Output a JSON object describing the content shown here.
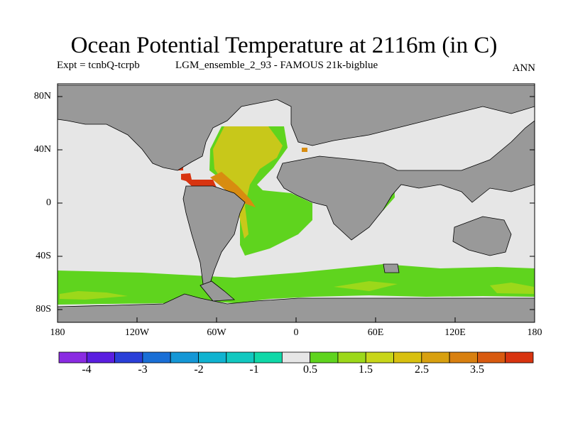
{
  "title": "Ocean Potential Temperature at 2116m (in C)",
  "subtitle_left": "Expt = tcnbQ-tcrpb",
  "subtitle_mid": "LGM_ensemble_2_93 - FAMOUS 21k-bigblue",
  "subtitle_right": "ANN",
  "y_ticks": [
    "80N",
    "40N",
    "0",
    "40S",
    "80S"
  ],
  "x_ticks": [
    "180",
    "120W",
    "60W",
    "0",
    "60E",
    "120E",
    "180"
  ],
  "colorbar": {
    "labels": [
      "-4",
      "-3",
      "-2",
      "-1",
      "0.5",
      "1.5",
      "2.5",
      "3.5"
    ],
    "colors": [
      "#8a2be2",
      "#5a1ee0",
      "#2a3fd8",
      "#1a6fd6",
      "#1597d6",
      "#10b3d0",
      "#12c8c0",
      "#10d8a8",
      "#e6e6e6",
      "#5fd41e",
      "#9cd81a",
      "#c8d61a",
      "#d8c010",
      "#d8a010",
      "#d88010",
      "#d85a10",
      "#d83410"
    ]
  },
  "map_colors": {
    "land": "#999999",
    "near_zero": "#e6e6e6",
    "green": "#5fd41e",
    "light_green": "#9cd81a",
    "yellow": "#c8c81a",
    "orange": "#d88c10",
    "red": "#d83410"
  }
}
